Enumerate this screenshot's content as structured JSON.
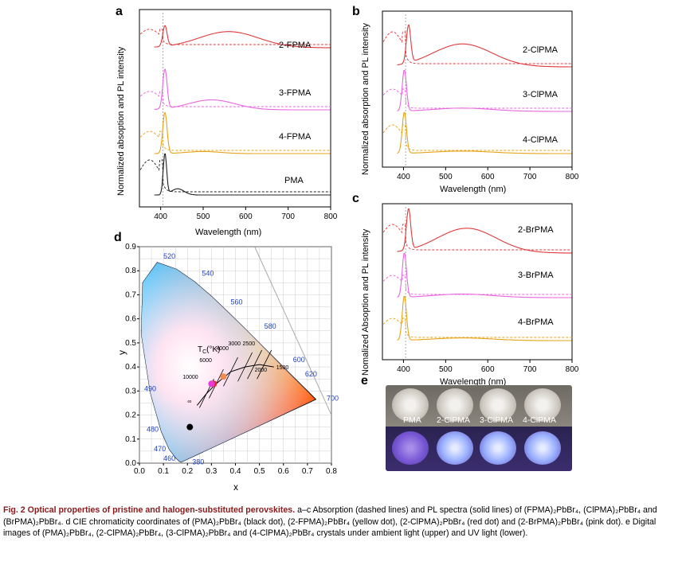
{
  "panels": {
    "a": {
      "letter": "a",
      "ylabel": "Normalized absoption and PL intensity",
      "xlabel": "Wavelength (nm)",
      "xticks": [
        "400",
        "500",
        "600",
        "700",
        "800"
      ],
      "series": [
        "2-FPMA",
        "3-FPMA",
        "4-FPMA",
        "PMA"
      ]
    },
    "b": {
      "letter": "b",
      "ylabel": "Normalized absorption and PL intensity",
      "xlabel": "Wavelength (nm)",
      "xticks": [
        "400",
        "500",
        "600",
        "700",
        "800"
      ],
      "series": [
        "2-ClPMA",
        "3-ClPMA",
        "4-ClPMA"
      ]
    },
    "c": {
      "letter": "c",
      "ylabel": "Nomalized Absoption and PL intensity",
      "xlabel": "Wavelength (nm)",
      "xticks": [
        "400",
        "500",
        "600",
        "700",
        "800"
      ],
      "series": [
        "2-BrPMA",
        "3-BrPMA",
        "4-BrPMA"
      ]
    },
    "d": {
      "letter": "d",
      "xlabel": "x",
      "ylabel": "y",
      "xticks": [
        "0.0",
        "0.1",
        "0.2",
        "0.3",
        "0.4",
        "0.5",
        "0.6",
        "0.7",
        "0.8"
      ],
      "yticks": [
        "0.0",
        "0.1",
        "0.2",
        "0.3",
        "0.4",
        "0.5",
        "0.6",
        "0.7",
        "0.8",
        "0.9"
      ],
      "wavelength_labels": [
        "520",
        "540",
        "560",
        "580",
        "600",
        "620",
        "700",
        "490",
        "480",
        "470",
        "460",
        "380"
      ],
      "tc_label": "T",
      "tc_sub": "C",
      "tc_unit": "(°K)",
      "temps": [
        "10000",
        "6000",
        "4000",
        "3000",
        "2500",
        "2000",
        "1500",
        "∞"
      ]
    },
    "e": {
      "letter": "e",
      "samples": [
        "PMA",
        "2-ClPMA",
        "3-ClPMA",
        "4-ClPMA"
      ]
    }
  },
  "chart_data": [
    {
      "type": "line",
      "panel": "a",
      "xlabel": "Wavelength (nm)",
      "ylabel": "Normalized absoption and PL intensity",
      "xlim": [
        350,
        800
      ],
      "series": [
        {
          "name": "2-FPMA",
          "color": "#e0393b",
          "pl_peaks_nm": [
            410,
            550
          ],
          "abs_edge_nm": 405
        },
        {
          "name": "3-FPMA",
          "color": "#e866e0",
          "pl_peaks_nm": [
            410,
            520
          ],
          "abs_edge_nm": 405
        },
        {
          "name": "4-FPMA",
          "color": "#e8a317",
          "pl_peaks_nm": [
            410
          ],
          "abs_edge_nm": 405
        },
        {
          "name": "PMA",
          "color": "#222222",
          "pl_peaks_nm": [
            410
          ],
          "abs_edge_nm": 405
        }
      ]
    },
    {
      "type": "line",
      "panel": "b",
      "xlabel": "Wavelength (nm)",
      "ylabel": "Normalized absorption and PL intensity",
      "xlim": [
        350,
        800
      ],
      "series": [
        {
          "name": "2-ClPMA",
          "color": "#e0393b",
          "pl_peaks_nm": [
            412,
            540
          ]
        },
        {
          "name": "3-ClPMA",
          "color": "#e866e0",
          "pl_peaks_nm": [
            402
          ]
        },
        {
          "name": "4-ClPMA",
          "color": "#e8a317",
          "pl_peaks_nm": [
            402
          ]
        }
      ]
    },
    {
      "type": "line",
      "panel": "c",
      "xlabel": "Wavelength (nm)",
      "ylabel": "Nomalized Absoption and PL intensity",
      "xlim": [
        350,
        800
      ],
      "series": [
        {
          "name": "2-BrPMA",
          "color": "#e0393b",
          "pl_peaks_nm": [
            412,
            540
          ]
        },
        {
          "name": "3-BrPMA",
          "color": "#e866e0",
          "pl_peaks_nm": [
            402
          ]
        },
        {
          "name": "4-BrPMA",
          "color": "#e8a317",
          "pl_peaks_nm": [
            402
          ]
        }
      ]
    },
    {
      "type": "scatter",
      "panel": "d",
      "xlabel": "x",
      "ylabel": "y",
      "xlim": [
        0.0,
        0.8
      ],
      "ylim": [
        0.0,
        0.9
      ],
      "points": [
        {
          "x": 0.21,
          "y": 0.15,
          "color": "#000000"
        },
        {
          "x": 0.35,
          "y": 0.36,
          "color": "#f28c4b"
        },
        {
          "x": 0.31,
          "y": 0.33,
          "color": "#e8262c"
        },
        {
          "x": 0.3,
          "y": 0.33,
          "color": "#e83ad8"
        }
      ]
    }
  ],
  "caption": {
    "lead": "Fig. 2 Optical properties of pristine and halogen-substituted perovskites.",
    "text": "a–c Absorption (dashed lines) and PL spectra (solid lines) of (FPMA)₂PbBr₄, (ClPMA)₂PbBr₄ and (BrPMA)₂PbBr₄. d CIE chromaticity coordinates of (PMA)₂PbBr₄ (black dot), (2-FPMA)₂PbBr₄ (yellow dot), (2-ClPMA)₂PbBr₄ (red dot) and (2-BrPMA)₂PbBr₄ (pink dot). e Digital images of (PMA)₂PbBr₄, (2-ClPMA)₂PbBr₄, (3-ClPMA)₂PbBr₄ and (4-ClPMA)₂PbBr₄ crystals under ambient light (upper) and UV light (lower)."
  }
}
